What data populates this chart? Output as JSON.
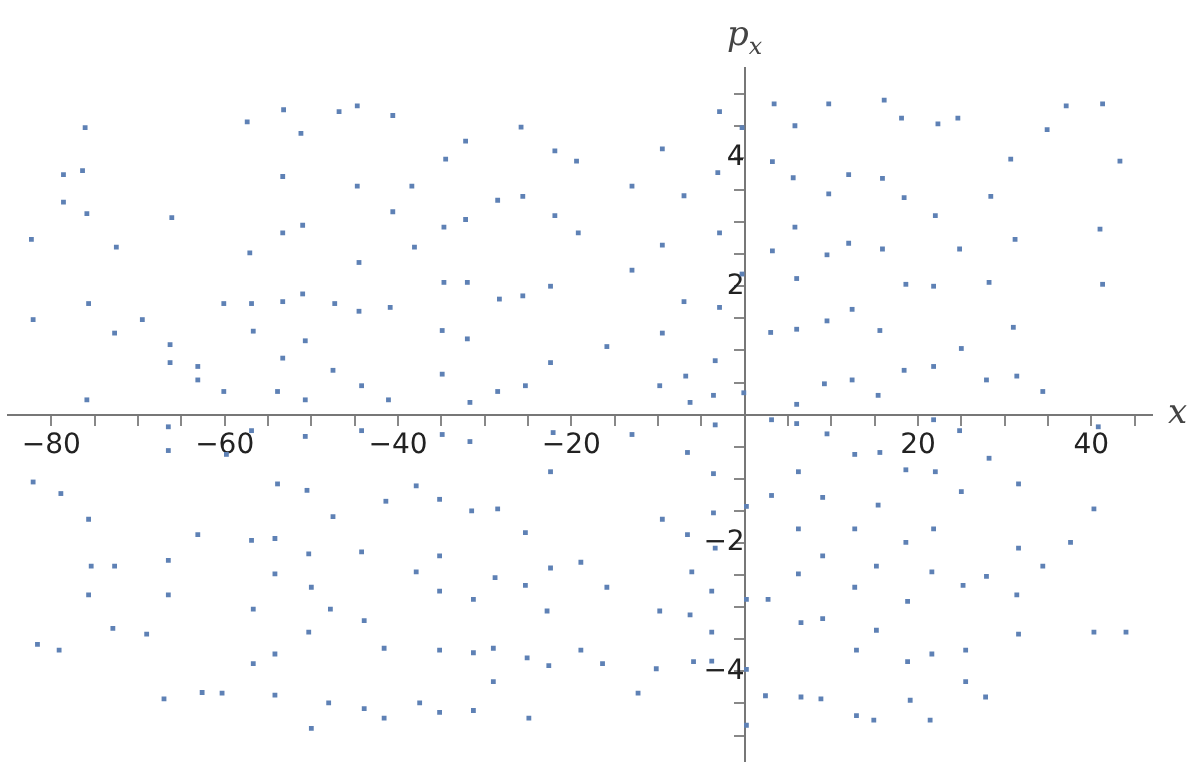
{
  "chart_data": {
    "type": "scatter",
    "xlabel": "x",
    "ylabel": "p$_{x}$",
    "marker": "square",
    "grid": false,
    "legend": false,
    "xlim": [
      -85,
      47
    ],
    "ylim": [
      -5.4,
      5.4
    ],
    "xticks": [
      {
        "value": -80,
        "label": "−80"
      },
      {
        "value": -75,
        "label": null
      },
      {
        "value": -70,
        "label": null
      },
      {
        "value": -65,
        "label": null
      },
      {
        "value": -60,
        "label": "−60"
      },
      {
        "value": -55,
        "label": null
      },
      {
        "value": -50,
        "label": null
      },
      {
        "value": -45,
        "label": null
      },
      {
        "value": -40,
        "label": "−40"
      },
      {
        "value": -35,
        "label": null
      },
      {
        "value": -30,
        "label": null
      },
      {
        "value": -25,
        "label": null
      },
      {
        "value": -20,
        "label": "−20"
      },
      {
        "value": -15,
        "label": null
      },
      {
        "value": -10,
        "label": null
      },
      {
        "value": -5,
        "label": null
      },
      {
        "value": 5,
        "label": null
      },
      {
        "value": 10,
        "label": null
      },
      {
        "value": 15,
        "label": null
      },
      {
        "value": 20,
        "label": "20"
      },
      {
        "value": 25,
        "label": null
      },
      {
        "value": 30,
        "label": null
      },
      {
        "value": 35,
        "label": null
      },
      {
        "value": 40,
        "label": "40"
      },
      {
        "value": 45,
        "label": null
      }
    ],
    "yticks": [
      {
        "value": -5,
        "label": null
      },
      {
        "value": -4.5,
        "label": null
      },
      {
        "value": -4,
        "label": "−4"
      },
      {
        "value": -3.5,
        "label": null
      },
      {
        "value": -3,
        "label": null
      },
      {
        "value": -2.5,
        "label": null
      },
      {
        "value": -2,
        "label": "−2"
      },
      {
        "value": -1.5,
        "label": null
      },
      {
        "value": -1,
        "label": null
      },
      {
        "value": -0.5,
        "label": null
      },
      {
        "value": 0.5,
        "label": null
      },
      {
        "value": 1,
        "label": null
      },
      {
        "value": 1.5,
        "label": null
      },
      {
        "value": 2,
        "label": "2"
      },
      {
        "value": 2.5,
        "label": null
      },
      {
        "value": 3,
        "label": null
      },
      {
        "value": 3.5,
        "label": null
      },
      {
        "value": 4,
        "label": "4"
      },
      {
        "value": 4.5,
        "label": null
      },
      {
        "value": 5,
        "label": null
      }
    ],
    "series": [
      {
        "color": "#5e81b5",
        "x": [
          -76.1,
          -78.6,
          -76.4,
          -78.6,
          -75.9,
          -82.3,
          -72.5,
          -75.7,
          -82.1,
          -72.7,
          -69.5,
          -66.1,
          -66.3,
          -66.3,
          -63.1,
          -63.1,
          -75.9,
          -60.1,
          -60.1,
          -57.1,
          -57.4,
          -56.9,
          -56.7,
          -53.2,
          -53.3,
          -53.3,
          -53.3,
          -53.3,
          -53.9,
          -51.2,
          -51.0,
          -51.0,
          -50.7,
          -50.7,
          -46.8,
          -47.3,
          -47.5,
          -44.7,
          -44.7,
          -44.5,
          -44.5,
          -44.2,
          -40.6,
          -40.6,
          -40.9,
          -41.1,
          -82.1,
          -78.9,
          -75.7,
          -75.4,
          -72.7,
          -75.7,
          -81.6,
          -79.1,
          -72.9,
          -69.0,
          -66.5,
          -66.5,
          -66.5,
          -66.5,
          -67.0,
          -63.1,
          -62.6,
          -60.3,
          -59.8,
          -56.9,
          -56.9,
          -56.7,
          -56.7,
          -53.9,
          -54.2,
          -54.2,
          -54.2,
          -54.2,
          -50.7,
          -50.5,
          -50.3,
          -50.0,
          -50.3,
          -50.0,
          -47.5,
          -47.8,
          -48.0,
          -44.2,
          -44.2,
          -43.9,
          -43.9,
          -41.4,
          -41.6,
          -41.6,
          -38.4,
          -38.1,
          -34.5,
          -34.7,
          -34.7,
          -34.9,
          -34.9,
          -32.2,
          -32.2,
          -32.0,
          -32.0,
          -31.7,
          -28.5,
          -28.3,
          -28.5,
          -25.8,
          -25.6,
          -25.6,
          -25.3,
          -21.9,
          -21.9,
          -22.4,
          -22.4,
          -19.4,
          -19.2,
          -15.9,
          -13.0,
          -13.0,
          -9.5,
          -9.5,
          -9.5,
          -9.8,
          -7.0,
          -7.0,
          -6.8,
          -6.3,
          -2.9,
          -3.1,
          -2.9,
          -2.9,
          -3.4,
          -3.6,
          -0.3,
          -0.3,
          -0.1,
          3.4,
          3.2,
          3.2,
          3.0,
          -37.9,
          -37.9,
          -37.5,
          -34.9,
          -35.2,
          -35.2,
          -35.2,
          -35.2,
          -35.2,
          -31.7,
          -31.5,
          -31.3,
          -31.3,
          -31.3,
          -28.5,
          -28.8,
          -29.0,
          -29.0,
          -25.3,
          -25.3,
          -25.1,
          -24.9,
          -22.1,
          -22.4,
          -22.4,
          -22.8,
          -22.6,
          -18.9,
          -18.9,
          -16.4,
          -15.9,
          -13.0,
          -12.3,
          -9.5,
          -9.8,
          -10.2,
          -6.6,
          -6.6,
          -6.1,
          -6.3,
          -5.9,
          -3.4,
          -3.6,
          -3.6,
          -3.4,
          -3.8,
          -3.8,
          -3.8,
          0.2,
          0.2,
          0.2,
          0.2,
          3.1,
          3.1,
          2.7,
          2.4,
          5.8,
          5.6,
          5.8,
          6.0,
          6.0,
          6.0,
          9.7,
          9.7,
          9.5,
          9.5,
          9.2,
          12.0,
          12.0,
          12.4,
          12.4,
          16.1,
          15.9,
          15.9,
          15.6,
          15.4,
          18.1,
          18.4,
          18.6,
          18.4,
          22.3,
          22.0,
          21.8,
          21.8,
          24.6,
          24.8,
          25.0,
          28.4,
          28.2,
          27.9,
          30.7,
          31.2,
          31.0,
          31.4,
          34.9,
          34.4,
          37.1,
          41.3,
          43.3,
          41.0,
          41.3,
          6.0,
          6.2,
          6.2,
          6.2,
          6.5,
          6.5,
          9.5,
          9.0,
          9.0,
          9.0,
          8.8,
          12.7,
          12.7,
          12.7,
          12.9,
          12.9,
          15.6,
          15.4,
          15.2,
          15.2,
          14.9,
          18.6,
          18.6,
          18.8,
          18.8,
          19.1,
          21.8,
          22.0,
          21.8,
          21.6,
          21.6,
          21.4,
          24.8,
          25.0,
          25.2,
          25.5,
          25.5,
          28.2,
          27.9,
          27.8,
          31.6,
          31.6,
          31.4,
          31.6,
          34.4,
          37.6,
          40.3,
          44.0,
          40.3,
          40.8
        ],
        "values": [
          4.47,
          3.74,
          3.8,
          3.31,
          3.13,
          2.73,
          2.61,
          1.73,
          1.48,
          1.27,
          1.48,
          3.07,
          1.09,
          0.81,
          0.75,
          0.54,
          0.23,
          1.73,
          0.36,
          2.52,
          4.56,
          1.73,
          1.3,
          4.75,
          3.71,
          2.83,
          1.76,
          0.88,
          0.36,
          4.38,
          2.95,
          1.88,
          1.15,
          0.23,
          4.72,
          1.73,
          0.69,
          4.81,
          3.56,
          2.37,
          1.61,
          0.45,
          4.66,
          3.16,
          1.67,
          0.23,
          -1.05,
          -1.23,
          -1.63,
          -2.36,
          -2.36,
          -2.81,
          -3.58,
          -3.67,
          -3.33,
          -3.42,
          -0.19,
          -0.56,
          -2.27,
          -2.81,
          -4.43,
          -1.87,
          -4.33,
          -4.34,
          -0.62,
          -0.25,
          -1.96,
          -3.03,
          -3.88,
          -1.08,
          -1.93,
          -2.48,
          -3.73,
          -4.37,
          -0.34,
          -1.18,
          -2.17,
          -2.69,
          -3.39,
          -4.89,
          -1.59,
          -3.03,
          -4.49,
          -0.25,
          -2.14,
          -3.21,
          -4.58,
          -1.35,
          -3.64,
          -4.73,
          3.56,
          2.61,
          3.98,
          2.92,
          2.06,
          1.31,
          0.63,
          4.26,
          3.04,
          2.06,
          1.18,
          0.19,
          3.34,
          1.8,
          0.36,
          4.48,
          3.4,
          1.85,
          0.45,
          4.11,
          3.1,
          2.0,
          0.81,
          3.95,
          2.83,
          1.06,
          3.56,
          2.25,
          4.14,
          2.64,
          1.27,
          0.45,
          3.41,
          1.76,
          0.6,
          0.19,
          4.72,
          3.77,
          2.83,
          1.67,
          0.84,
          0.3,
          4.47,
          2.19,
          0.34,
          4.84,
          3.94,
          2.55,
          1.28,
          -1.11,
          -2.45,
          -4.49,
          -0.31,
          -1.32,
          -2.2,
          -2.75,
          -3.67,
          -4.64,
          -0.42,
          -1.5,
          -2.88,
          -3.71,
          -4.61,
          -1.47,
          -2.54,
          -3.64,
          -4.16,
          -1.84,
          -2.66,
          -3.79,
          -4.73,
          -0.28,
          -0.89,
          -2.39,
          -3.06,
          -3.91,
          -2.3,
          -3.67,
          -3.88,
          -2.69,
          -0.31,
          -4.34,
          -1.63,
          -3.06,
          -3.96,
          -0.59,
          -1.87,
          -2.45,
          -3.12,
          -3.85,
          -0.16,
          -0.92,
          -1.53,
          -2.08,
          -2.75,
          -3.39,
          -3.84,
          -1.43,
          -2.88,
          -3.97,
          -4.84,
          -0.08,
          -1.26,
          -2.88,
          -4.38,
          4.5,
          3.69,
          2.92,
          2.12,
          1.33,
          0.16,
          4.84,
          3.44,
          2.49,
          1.46,
          0.48,
          3.74,
          2.67,
          1.64,
          0.54,
          4.9,
          3.68,
          2.58,
          1.31,
          0.3,
          4.62,
          3.38,
          2.03,
          0.69,
          4.53,
          3.1,
          2.0,
          0.75,
          4.62,
          2.58,
          1.03,
          3.4,
          2.06,
          0.54,
          3.98,
          2.73,
          1.36,
          0.6,
          4.44,
          0.36,
          4.81,
          4.84,
          3.95,
          2.89,
          2.03,
          -0.14,
          -0.89,
          -1.78,
          -2.48,
          -3.24,
          -4.4,
          -0.3,
          -1.29,
          -2.2,
          -3.18,
          -4.43,
          -0.62,
          -1.78,
          -2.69,
          -3.67,
          -4.69,
          -0.59,
          -1.41,
          -2.36,
          -3.36,
          -4.76,
          -0.86,
          -1.99,
          -2.91,
          -3.85,
          -4.45,
          -0.08,
          -0.89,
          -1.78,
          -2.45,
          -3.73,
          -4.76,
          -0.25,
          -1.2,
          -2.66,
          -3.67,
          -4.16,
          -0.68,
          -2.52,
          -4.4,
          -1.08,
          -2.08,
          -2.81,
          -3.42,
          -2.36,
          -1.99,
          -3.39,
          -3.39,
          -1.47,
          -0.19
        ]
      }
    ]
  }
}
